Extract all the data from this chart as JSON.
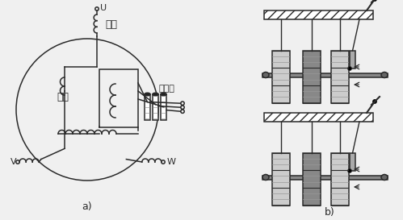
{
  "bg_color": "#f0f0f0",
  "line_color": "#2a2a2a",
  "title_a": "a)",
  "title_b": "b)",
  "label_U": "U",
  "label_V": "V",
  "label_W": "W",
  "label_dingzi": "定子",
  "label_zhuanzi": "转子",
  "label_jidianhuan": "集电环",
  "gray1": "#aaaaaa",
  "gray2": "#888888",
  "gray3": "#666666",
  "gray4": "#cccccc",
  "white": "#ffffff"
}
